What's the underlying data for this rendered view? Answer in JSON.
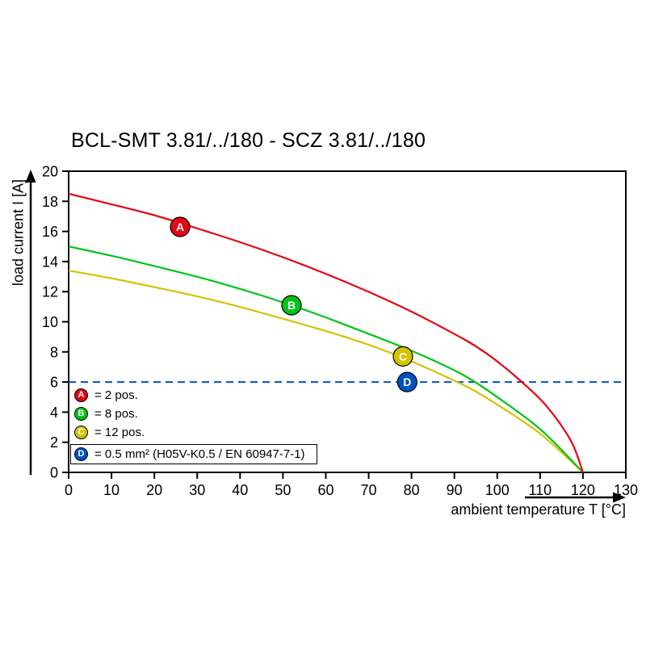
{
  "chart_data": {
    "type": "line",
    "title": "BCL-SMT 3.81/../180 - SCZ 3.81/../180",
    "xlabel": "ambient temperature T [°C]",
    "ylabel": "load current I [A]",
    "xlim": [
      0,
      130
    ],
    "ylim": [
      0,
      20
    ],
    "x_ticks": [
      0,
      10,
      20,
      30,
      40,
      50,
      60,
      70,
      80,
      90,
      100,
      110,
      120,
      130
    ],
    "y_ticks": [
      0,
      2,
      4,
      6,
      8,
      10,
      12,
      14,
      16,
      18,
      20
    ],
    "grid": false,
    "legend_position": "inside-bottom-left",
    "series": [
      {
        "name": "A",
        "description": "2 pos.",
        "color": "#e30613",
        "style": "solid",
        "points": [
          [
            0,
            18.5
          ],
          [
            10,
            17.8
          ],
          [
            20,
            17.1
          ],
          [
            30,
            16.2
          ],
          [
            40,
            15.3
          ],
          [
            50,
            14.3
          ],
          [
            60,
            13.2
          ],
          [
            70,
            12.0
          ],
          [
            80,
            10.7
          ],
          [
            90,
            9.2
          ],
          [
            95,
            8.4
          ],
          [
            100,
            7.4
          ],
          [
            105,
            6.2
          ],
          [
            110,
            4.9
          ],
          [
            113,
            3.9
          ],
          [
            116,
            2.7
          ],
          [
            118,
            1.7
          ],
          [
            120,
            0
          ]
        ],
        "marker": {
          "x": 26,
          "y": 16.3
        }
      },
      {
        "name": "B",
        "description": "8 pos.",
        "color": "#00c418",
        "style": "solid",
        "points": [
          [
            0,
            15.0
          ],
          [
            10,
            14.4
          ],
          [
            20,
            13.7
          ],
          [
            30,
            13.0
          ],
          [
            40,
            12.2
          ],
          [
            50,
            11.3
          ],
          [
            60,
            10.3
          ],
          [
            70,
            9.2
          ],
          [
            80,
            8.1
          ],
          [
            90,
            6.8
          ],
          [
            95,
            6.0
          ],
          [
            100,
            5.0
          ],
          [
            105,
            4.0
          ],
          [
            110,
            2.9
          ],
          [
            114,
            1.8
          ],
          [
            117,
            0.9
          ],
          [
            120,
            0
          ]
        ],
        "marker": {
          "x": 52,
          "y": 11.1
        }
      },
      {
        "name": "C",
        "description": "12 pos.",
        "color": "#d3c400",
        "style": "solid",
        "points": [
          [
            0,
            13.4
          ],
          [
            10,
            12.9
          ],
          [
            20,
            12.3
          ],
          [
            30,
            11.7
          ],
          [
            40,
            11.0
          ],
          [
            50,
            10.2
          ],
          [
            60,
            9.4
          ],
          [
            70,
            8.5
          ],
          [
            80,
            7.4
          ],
          [
            90,
            6.1
          ],
          [
            95,
            5.4
          ],
          [
            100,
            4.5
          ],
          [
            105,
            3.6
          ],
          [
            110,
            2.6
          ],
          [
            114,
            1.6
          ],
          [
            117,
            0.8
          ],
          [
            120,
            0
          ]
        ],
        "marker": {
          "x": 78,
          "y": 7.7
        }
      },
      {
        "name": "D",
        "description": "0.5 mm² (H05V-K0.5 / EN 60947-7-1)",
        "color": "#0052c2",
        "style": "dashed",
        "points": [
          [
            0,
            6
          ],
          [
            130,
            6
          ]
        ],
        "marker": {
          "x": 79,
          "y": 6
        }
      }
    ],
    "legend": {
      "items": [
        {
          "key": "A",
          "label": "= 2 pos."
        },
        {
          "key": "B",
          "label": "= 8 pos."
        },
        {
          "key": "C",
          "label": "= 12 pos."
        },
        {
          "key": "D",
          "label": "= 0.5 mm² (H05V-K0.5 / EN 60947-7-1)",
          "boxed": true
        }
      ]
    }
  }
}
